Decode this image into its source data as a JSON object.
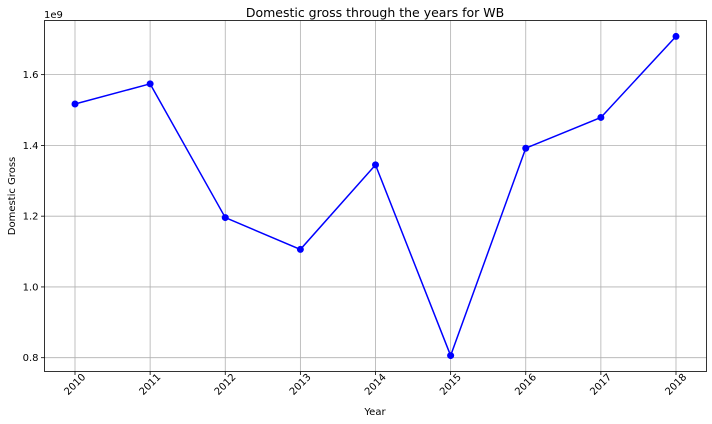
{
  "chart_data": {
    "type": "line",
    "title": "Domestic gross through the years for WB",
    "xlabel": "Year",
    "ylabel": "Domestic Gross",
    "y_offset_label": "1e9",
    "x": [
      "2010",
      "2011",
      "2012",
      "2013",
      "2014",
      "2015",
      "2016",
      "2017",
      "2018"
    ],
    "series": [
      {
        "values": [
          1.517,
          1.574,
          1.196,
          1.106,
          1.345,
          0.806,
          1.392,
          1.479,
          1.708
        ],
        "color": "#0000ff",
        "marker": "circle"
      }
    ],
    "y_ticks": [
      0.8,
      1.0,
      1.2,
      1.4,
      1.6
    ],
    "y_tick_labels": [
      "0.8",
      "1.0",
      "1.2",
      "1.4",
      "1.6"
    ],
    "ylim": [
      0.761,
      1.753
    ],
    "grid": true,
    "x_tick_rotation": 45
  }
}
